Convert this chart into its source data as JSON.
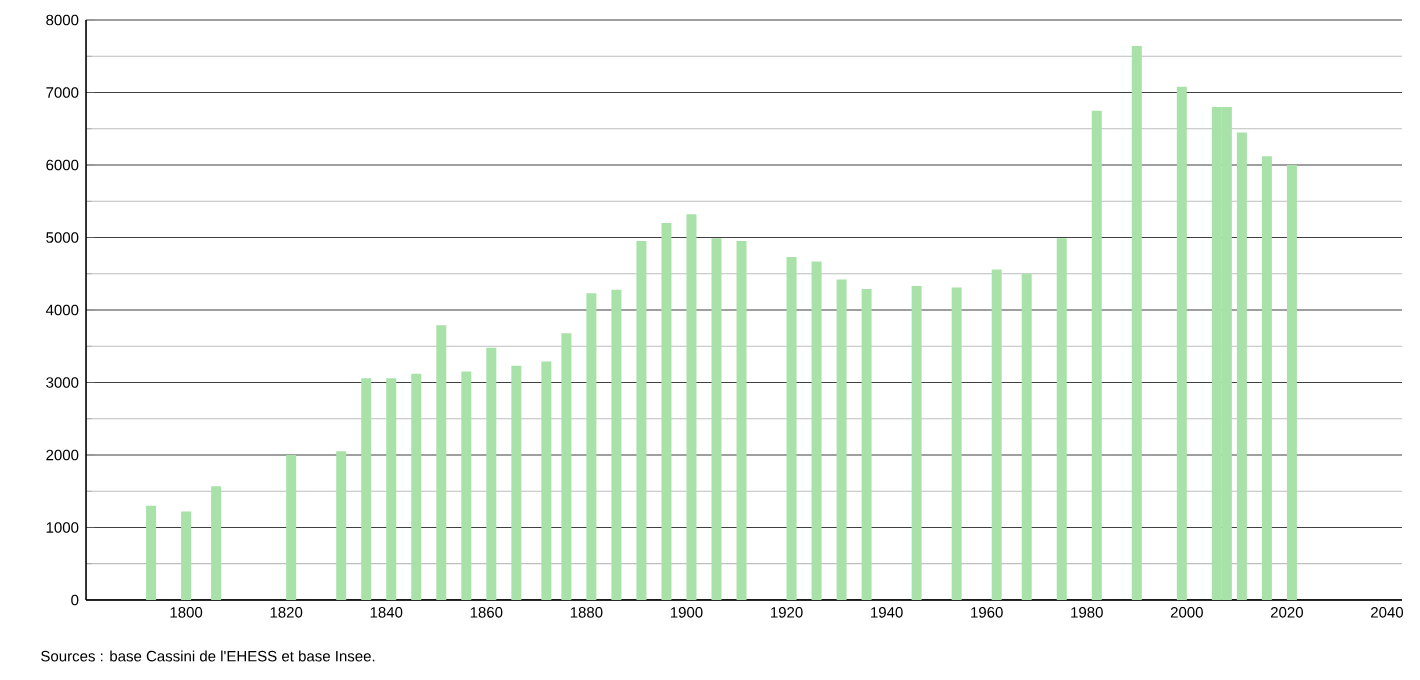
{
  "chart_data": {
    "type": "bar",
    "x": [
      1793,
      1800,
      1806,
      1821,
      1831,
      1836,
      1841,
      1846,
      1851,
      1856,
      1861,
      1866,
      1872,
      1876,
      1881,
      1886,
      1891,
      1896,
      1901,
      1906,
      1911,
      1921,
      1926,
      1931,
      1936,
      1946,
      1954,
      1962,
      1968,
      1975,
      1982,
      1990,
      1999,
      2006,
      2008,
      2011,
      2016,
      2021
    ],
    "values": [
      1300,
      1220,
      1570,
      2000,
      2050,
      3060,
      3060,
      3120,
      3790,
      3150,
      3480,
      3230,
      3290,
      3680,
      4230,
      4280,
      4950,
      5200,
      5320,
      4990,
      4950,
      4730,
      4670,
      4420,
      4290,
      4330,
      4310,
      4560,
      4500,
      4990,
      6750,
      7640,
      7080,
      6800,
      6800,
      6450,
      6120,
      6000
    ],
    "color": "#a8e2a8",
    "xlim": [
      1780,
      2043
    ],
    "xticks": [
      1800,
      1820,
      1840,
      1860,
      1880,
      1900,
      1920,
      1940,
      1960,
      1980,
      2000,
      2020,
      2040
    ],
    "ylim": [
      0,
      8000
    ],
    "yticks": [
      0,
      1000,
      2000,
      3000,
      4000,
      5000,
      6000,
      7000,
      8000
    ],
    "grid": "y",
    "annotations": [
      "Sources : base Cassini de l'EHESS et base Insee."
    ]
  }
}
